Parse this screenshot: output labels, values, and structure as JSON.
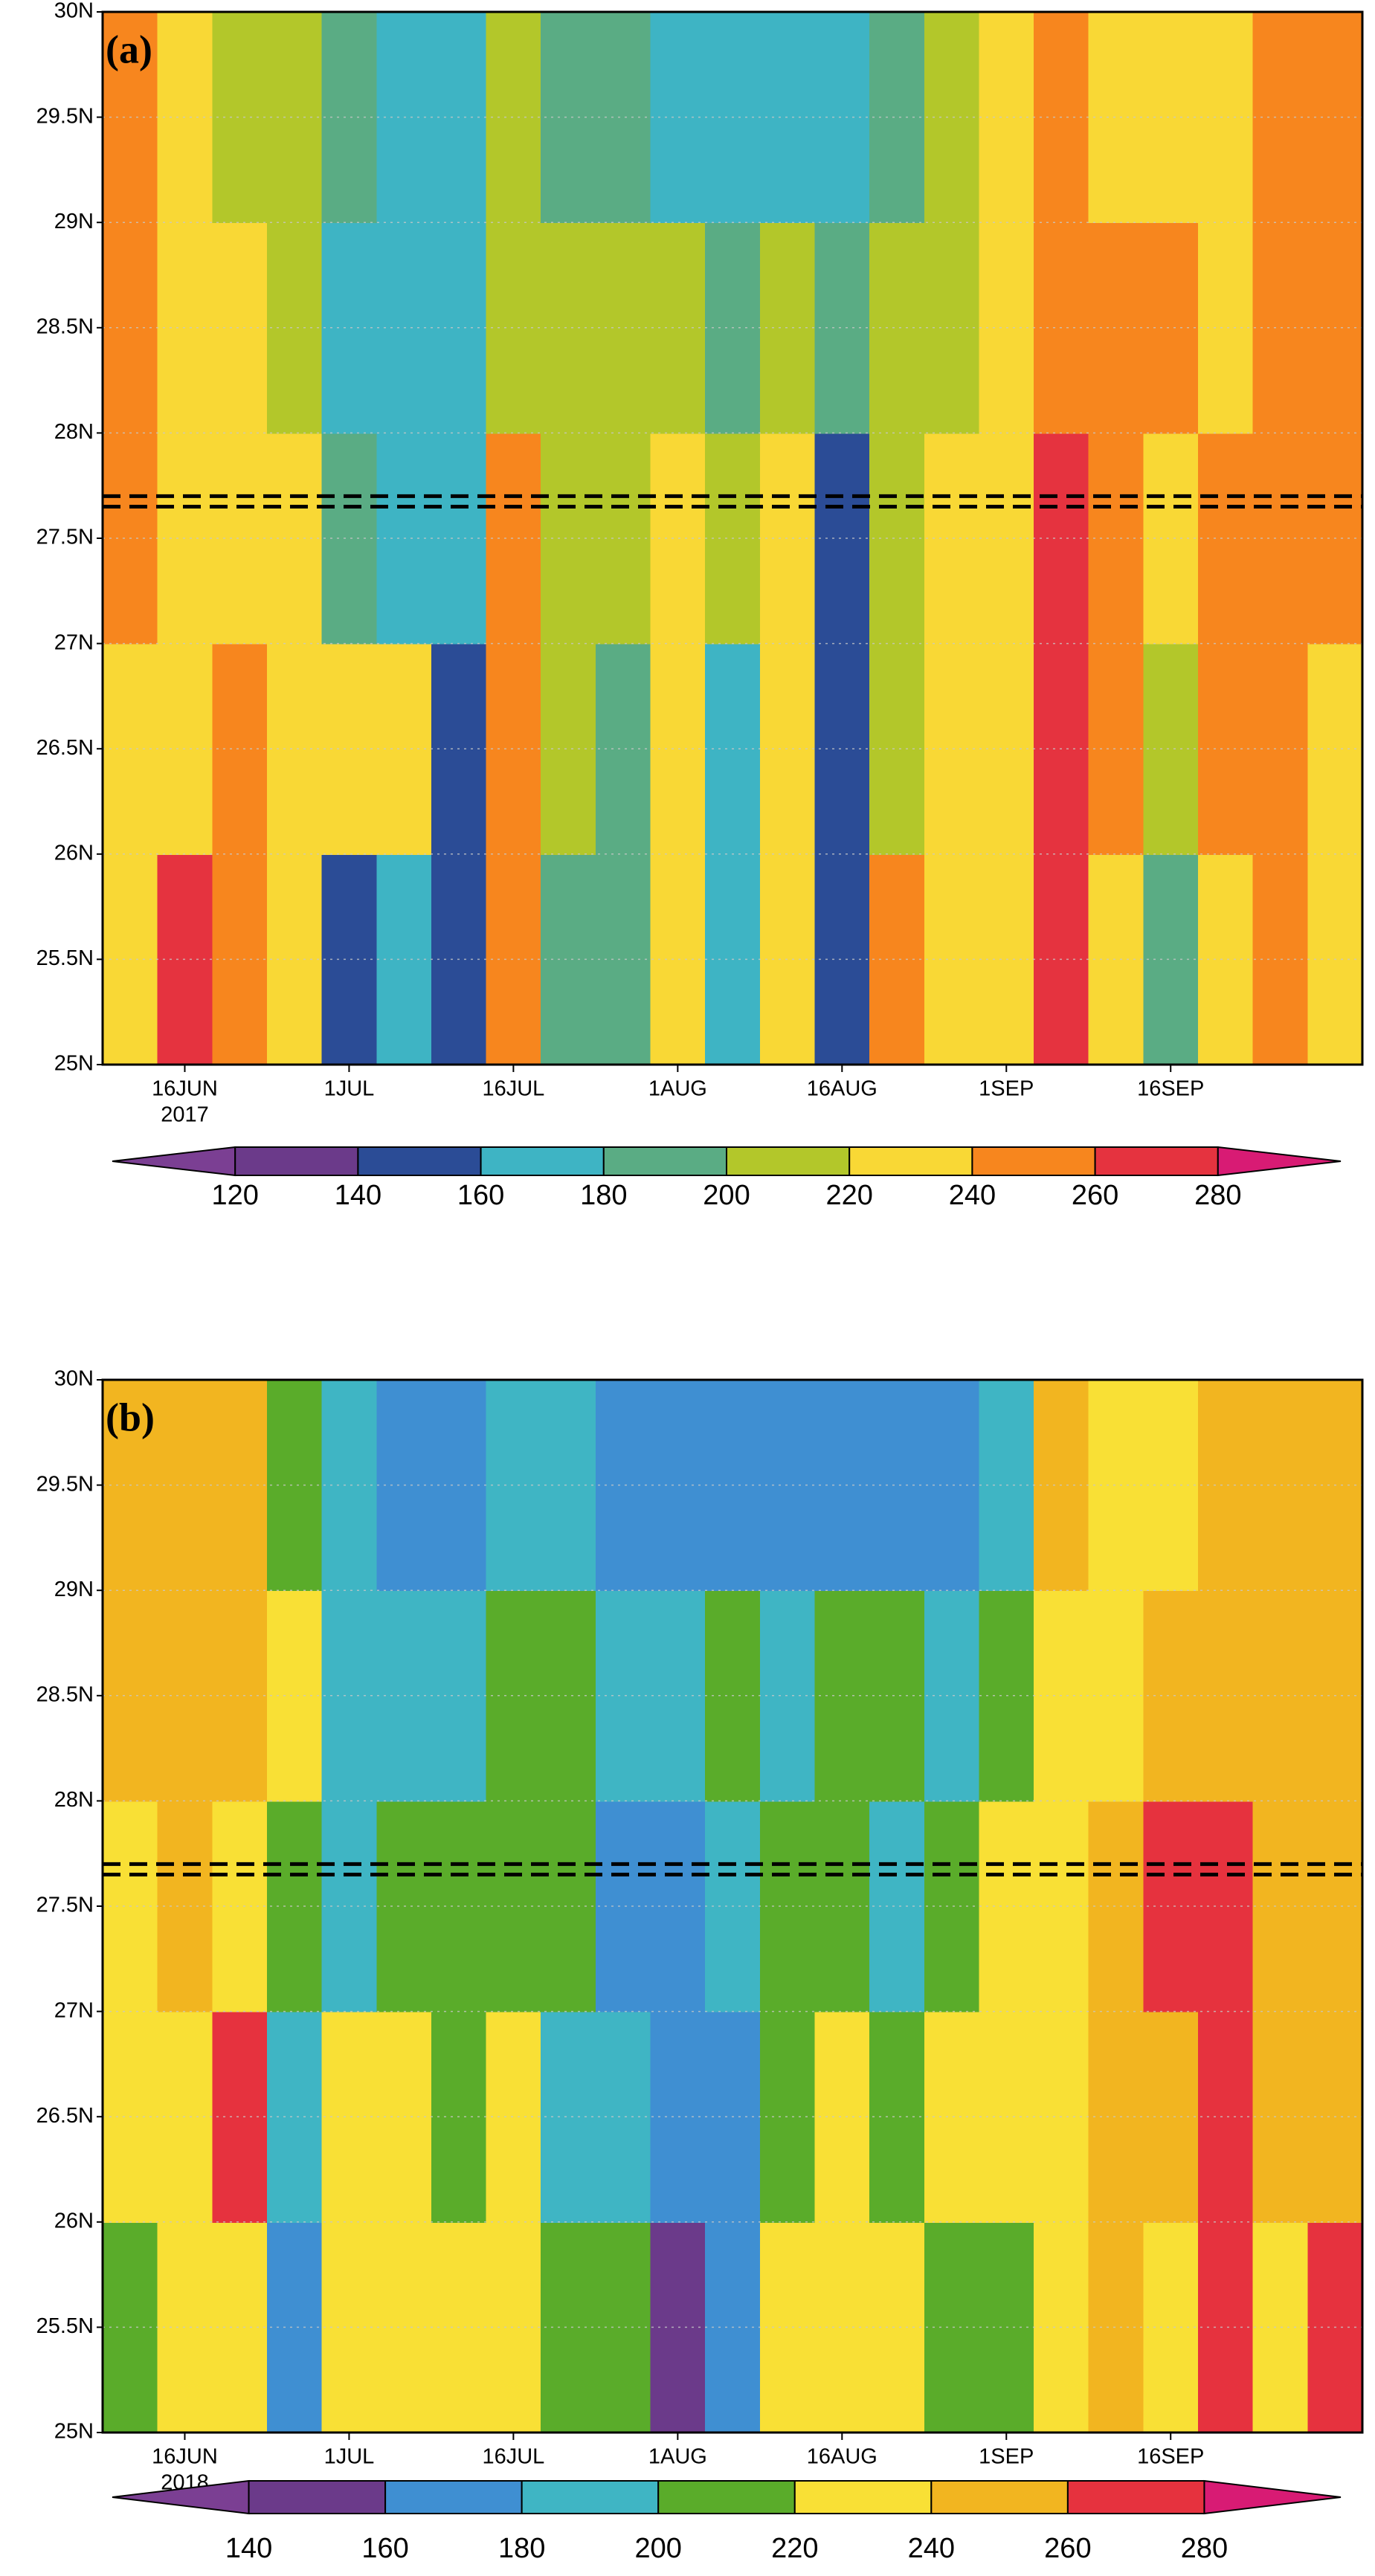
{
  "chart_data": [
    {
      "type": "heatmap",
      "label": "(a)",
      "categories": [
        null,
        "16JUN",
        null,
        null,
        "1JUL",
        null,
        null,
        "16JUL",
        null,
        null,
        "1AUG",
        null,
        null,
        "16AUG",
        null,
        null,
        "1SEP",
        null,
        null,
        "16SEP",
        null,
        null,
        null
      ],
      "x_sublabel": "2017",
      "ylim": [
        25,
        30
      ],
      "yticks": [
        {
          "value": 25,
          "label": "25N"
        },
        {
          "value": 25.5,
          "label": "25.5N"
        },
        {
          "value": 26,
          "label": "26N"
        },
        {
          "value": 26.5,
          "label": "26.5N"
        },
        {
          "value": 27,
          "label": "27N"
        },
        {
          "value": 27.5,
          "label": "27.5N"
        },
        {
          "value": 28,
          "label": "28N"
        },
        {
          "value": 28.5,
          "label": "28.5N"
        },
        {
          "value": 29,
          "label": "29N"
        },
        {
          "value": 29.5,
          "label": "29.5N"
        },
        {
          "value": 30,
          "label": "30N"
        }
      ],
      "grid": true,
      "hlines": [
        27.65,
        27.7
      ],
      "levels": [
        120,
        140,
        160,
        180,
        200,
        220,
        240,
        260,
        280
      ],
      "colors": [
        "#7b3f93",
        "#6b3a8a",
        "#2b4c96",
        "#3eb4c4",
        "#5aac84",
        "#b3c72a",
        "#f9d835",
        "#f7861e",
        "#e5333f",
        "#d81b74"
      ],
      "values": [
        [
          230,
          270,
          250,
          230,
          150,
          170,
          150,
          250,
          190,
          190,
          230,
          170,
          230,
          150,
          250,
          230,
          230,
          270,
          230,
          190,
          230,
          250,
          230
        ],
        [
          230,
          230,
          250,
          230,
          230,
          230,
          150,
          250,
          210,
          190,
          230,
          170,
          230,
          150,
          210,
          230,
          230,
          270,
          250,
          210,
          250,
          250,
          230
        ],
        [
          250,
          230,
          230,
          230,
          190,
          170,
          170,
          250,
          210,
          210,
          230,
          210,
          230,
          150,
          210,
          230,
          230,
          270,
          250,
          230,
          250,
          250,
          250
        ],
        [
          250,
          230,
          230,
          210,
          170,
          170,
          170,
          210,
          210,
          210,
          210,
          190,
          210,
          190,
          210,
          210,
          230,
          250,
          250,
          250,
          230,
          250,
          250
        ],
        [
          250,
          230,
          210,
          210,
          190,
          170,
          170,
          210,
          190,
          190,
          170,
          170,
          170,
          170,
          190,
          210,
          230,
          250,
          230,
          230,
          230,
          250,
          250
        ]
      ]
    },
    {
      "type": "heatmap",
      "label": "(b)",
      "categories": [
        null,
        "16JUN",
        null,
        null,
        "1JUL",
        null,
        null,
        "16JUL",
        null,
        null,
        "1AUG",
        null,
        null,
        "16AUG",
        null,
        null,
        "1SEP",
        null,
        null,
        "16SEP",
        null,
        null,
        null
      ],
      "x_sublabel": "2018",
      "ylim": [
        25,
        30
      ],
      "yticks": [
        {
          "value": 25,
          "label": "25N"
        },
        {
          "value": 25.5,
          "label": "25.5N"
        },
        {
          "value": 26,
          "label": "26N"
        },
        {
          "value": 26.5,
          "label": "26.5N"
        },
        {
          "value": 27,
          "label": "27N"
        },
        {
          "value": 27.5,
          "label": "27.5N"
        },
        {
          "value": 28,
          "label": "28N"
        },
        {
          "value": 28.5,
          "label": "28.5N"
        },
        {
          "value": 29,
          "label": "29N"
        },
        {
          "value": 29.5,
          "label": "29.5N"
        },
        {
          "value": 30,
          "label": "30N"
        }
      ],
      "grid": true,
      "hlines": [
        27.65,
        27.7
      ],
      "levels": [
        140,
        160,
        180,
        200,
        220,
        240,
        260,
        280
      ],
      "colors": [
        "#7b3f93",
        "#6b3a8a",
        "#3f8fd2",
        "#3fb5c4",
        "#5aac2a",
        "#f9e035",
        "#f2b520",
        "#e6323e",
        "#d81b74"
      ],
      "values": [
        [
          210,
          230,
          230,
          170,
          230,
          230,
          230,
          230,
          210,
          210,
          150,
          170,
          230,
          230,
          230,
          210,
          210,
          230,
          250,
          230,
          270,
          230,
          270
        ],
        [
          230,
          230,
          270,
          190,
          230,
          230,
          210,
          230,
          190,
          190,
          170,
          170,
          210,
          230,
          210,
          230,
          230,
          230,
          250,
          250,
          270,
          250,
          250
        ],
        [
          230,
          250,
          230,
          210,
          190,
          210,
          210,
          210,
          210,
          170,
          170,
          190,
          210,
          210,
          190,
          210,
          230,
          230,
          250,
          270,
          270,
          250,
          250
        ],
        [
          250,
          250,
          250,
          230,
          190,
          190,
          190,
          210,
          210,
          190,
          190,
          210,
          190,
          210,
          210,
          190,
          210,
          230,
          230,
          250,
          250,
          250,
          250
        ],
        [
          250,
          250,
          250,
          210,
          190,
          170,
          170,
          190,
          190,
          170,
          170,
          170,
          170,
          170,
          170,
          170,
          190,
          250,
          230,
          230,
          250,
          250,
          250
        ]
      ]
    }
  ]
}
